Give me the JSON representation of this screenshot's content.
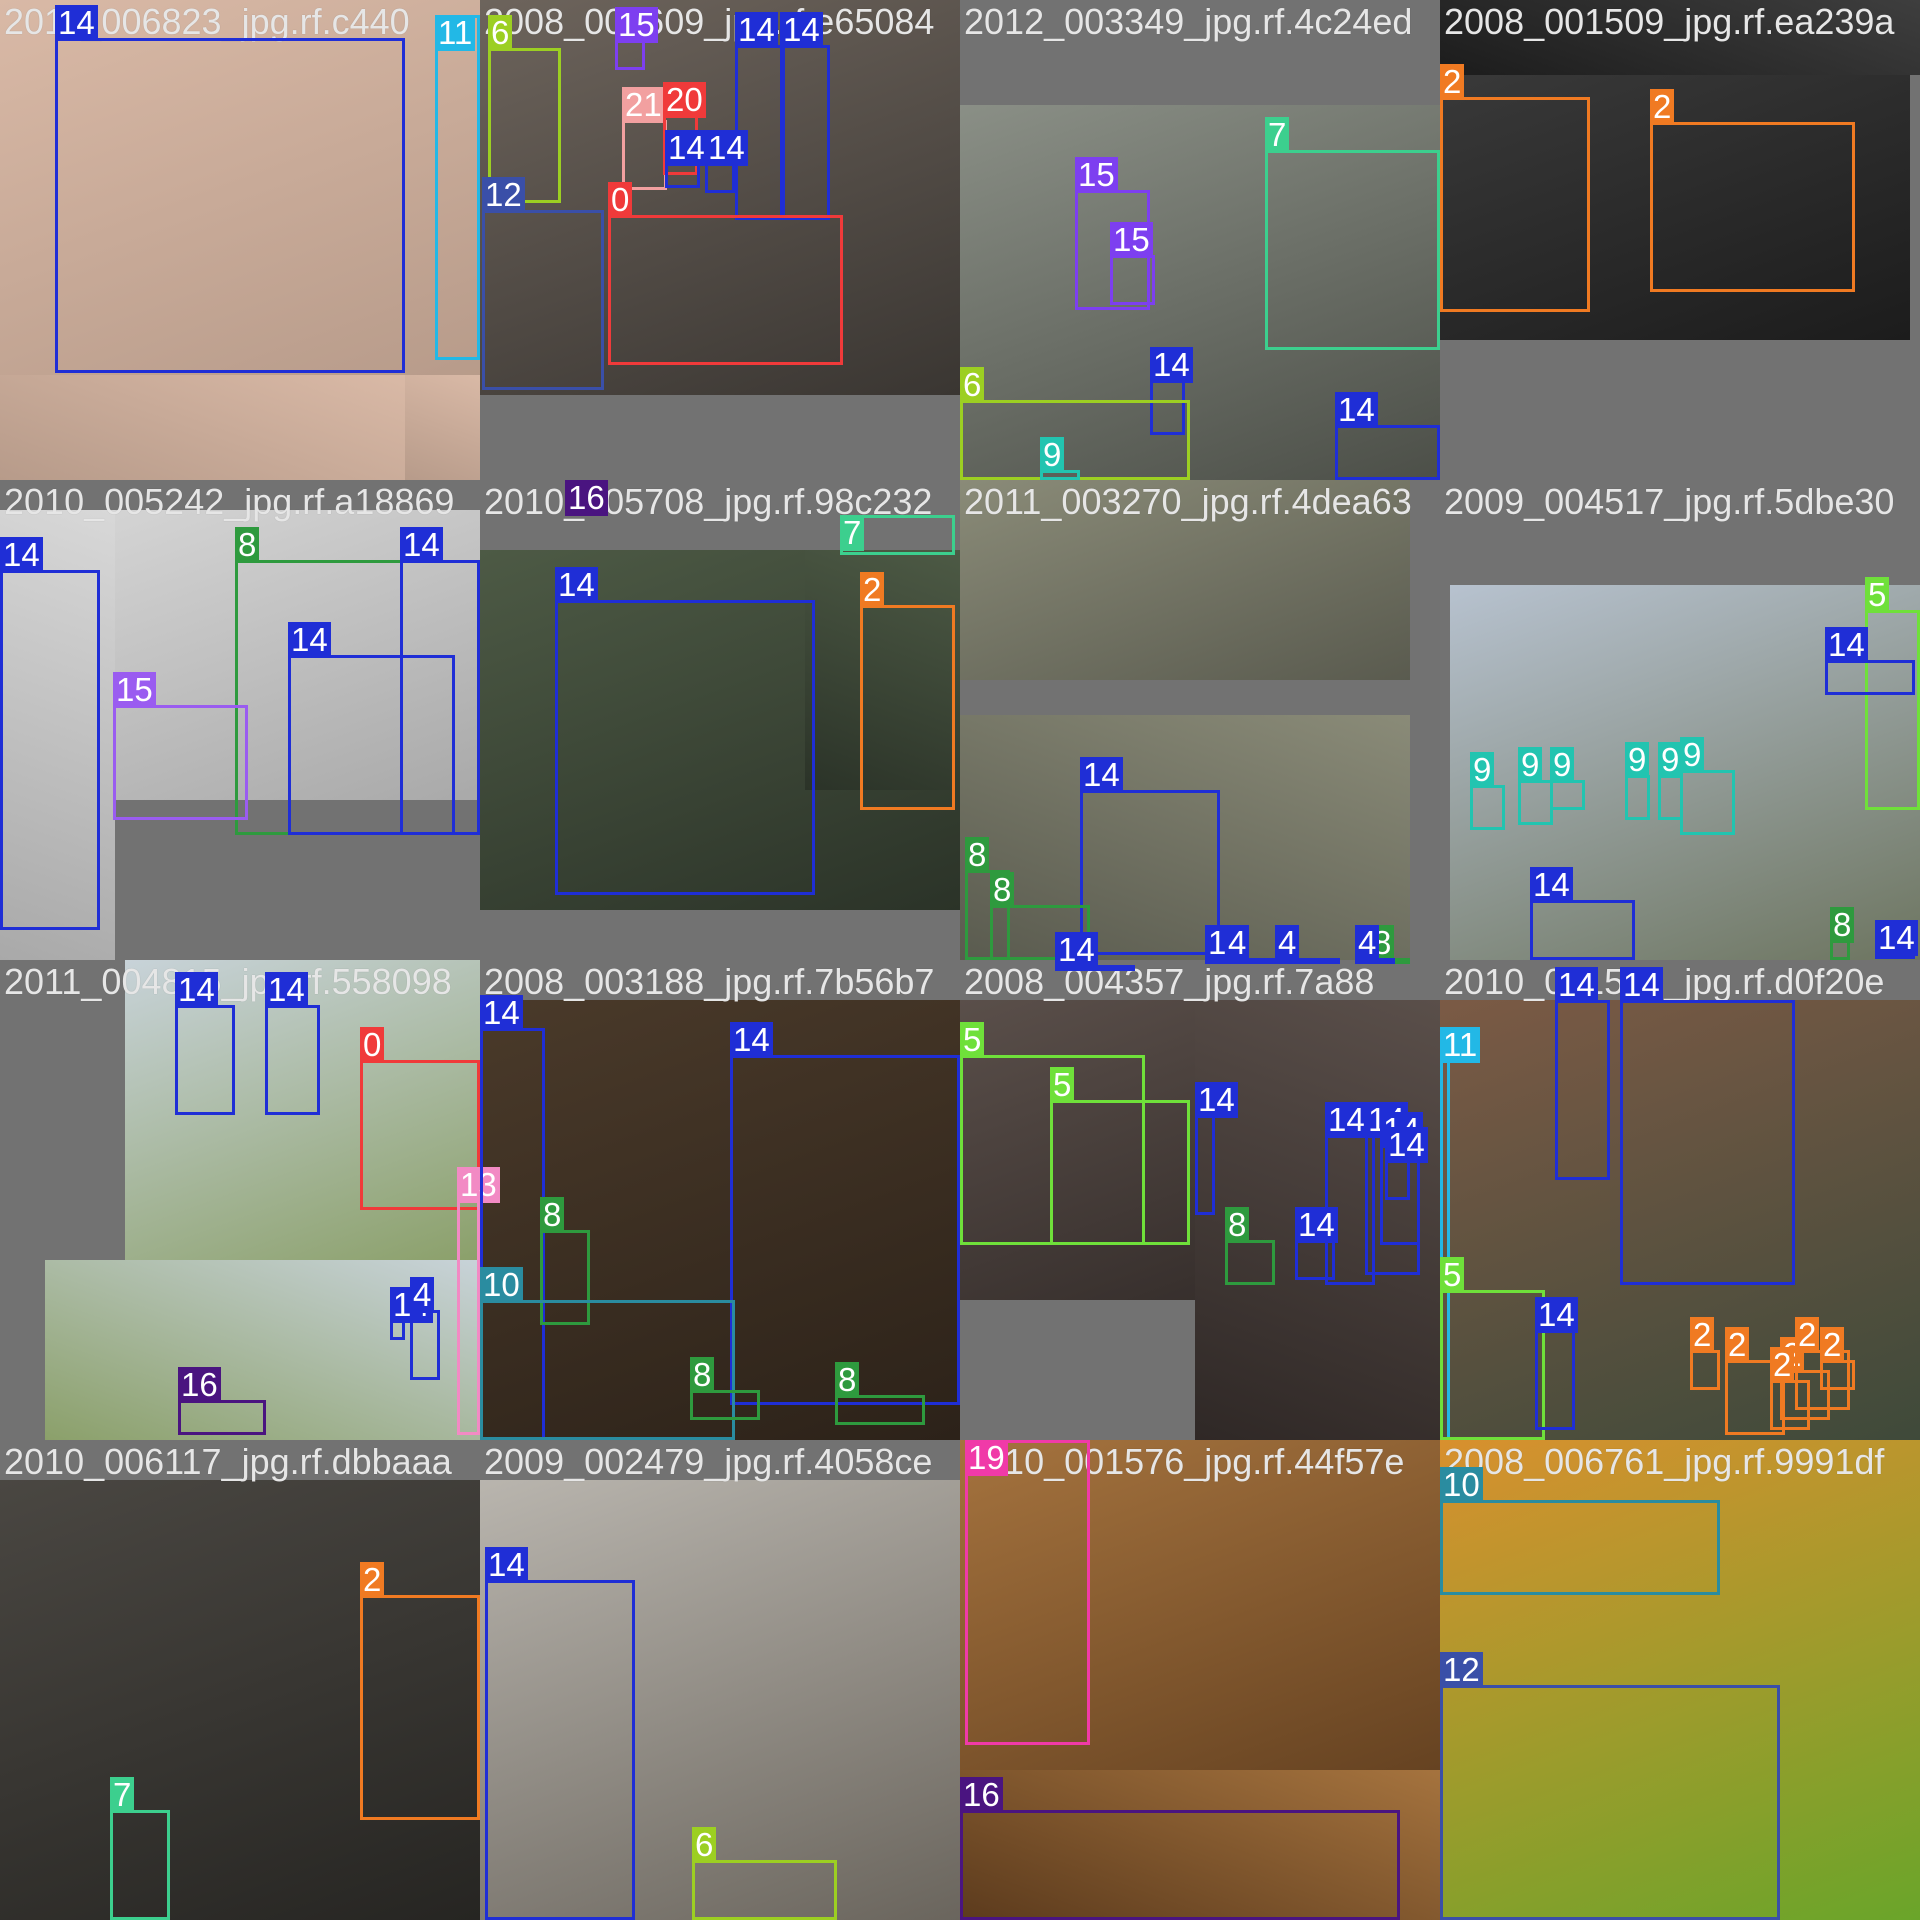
{
  "mosaic": {
    "tiles": [
      {
        "filename": "2011_006823_jpg.rf.c440",
        "bg": [
          "#d9b9a6",
          "#b79b8a"
        ]
      },
      {
        "filename": "2008_003609_jpg.rf.e65084",
        "bg": [
          "#6d645c",
          "#3a3632"
        ]
      },
      {
        "filename": "2012_003349_jpg.rf.4c24ed",
        "bg": [
          "#8a8f86",
          "#4c4f48"
        ]
      },
      {
        "filename": "2008_001509_jpg.rf.ea239a",
        "bg": [
          "#3e3e3e",
          "#1c1c1c"
        ]
      },
      {
        "filename": "2010_005242_jpg.rf.a18869",
        "bg": [
          "#d8d8d8",
          "#a9a9a9"
        ]
      },
      {
        "filename": "2010_005708_jpg.rf.98c232",
        "bg": [
          "#4d5a45",
          "#2b3328"
        ]
      },
      {
        "filename": "2011_003270_jpg.rf.4dea63",
        "bg": [
          "#8a8b78",
          "#5a5b4f"
        ]
      },
      {
        "filename": "2009_004517_jpg.rf.5dbe30",
        "bg": [
          "#b7c2cf",
          "#6d7560"
        ]
      },
      {
        "filename": "2011_004815_jpg.rf.558098",
        "bg": [
          "#c8d3d9",
          "#8ba06a"
        ]
      },
      {
        "filename": "2008_003188_jpg.rf.7b56b7",
        "bg": [
          "#4a3a2a",
          "#2c2219"
        ]
      },
      {
        "filename": "2008_004357_jpg.rf.7a88",
        "bg": [
          "#5a4f4a",
          "#2f2826"
        ]
      },
      {
        "filename": "2010_001599_jpg.rf.d0f20e",
        "bg": [
          "#7b5a45",
          "#3f4a3a"
        ]
      },
      {
        "filename": "2010_006117_jpg.rf.dbbaaa",
        "bg": [
          "#4a4742",
          "#262522"
        ]
      },
      {
        "filename": "2009_002479_jpg.rf.4058ce",
        "bg": [
          "#b9b5ae",
          "#6a655d"
        ]
      },
      {
        "filename": "2010_001576_jpg.rf.44f57e",
        "bg": [
          "#a5733e",
          "#5c3b1d"
        ]
      },
      {
        "filename": "2008_006761_jpg.rf.9991df",
        "bg": [
          "#d8902e",
          "#6aa52a"
        ]
      }
    ],
    "boxes": [
      {
        "tile": 0,
        "label": "14",
        "color": "#1f2ed6"
      },
      {
        "tile": 0,
        "label": "11",
        "color": "#22b8e6"
      },
      {
        "tile": 1,
        "label": "6",
        "color": "#9ccf22"
      },
      {
        "tile": 1,
        "label": "15",
        "color": "#7d3ff0"
      },
      {
        "tile": 1,
        "label": "14",
        "color": "#1f2ed6"
      },
      {
        "tile": 1,
        "label": "14",
        "color": "#1f2ed6"
      },
      {
        "tile": 1,
        "label": "21",
        "color": "#f2a0a0"
      },
      {
        "tile": 1,
        "label": "20",
        "color": "#f03a3a"
      },
      {
        "tile": 1,
        "label": "14",
        "color": "#1f2ed6"
      },
      {
        "tile": 1,
        "label": "14",
        "color": "#1f2ed6"
      },
      {
        "tile": 1,
        "label": "12",
        "color": "#3a4fa8"
      },
      {
        "tile": 1,
        "label": "0",
        "color": "#f03a3a"
      },
      {
        "tile": 2,
        "label": "7",
        "color": "#3ccf8e"
      },
      {
        "tile": 2,
        "label": "15",
        "color": "#7d3ff0"
      },
      {
        "tile": 2,
        "label": "15",
        "color": "#7d3ff0"
      },
      {
        "tile": 2,
        "label": "14",
        "color": "#1f2ed6"
      },
      {
        "tile": 2,
        "label": "6",
        "color": "#9ccf22"
      },
      {
        "tile": 2,
        "label": "9",
        "color": "#22c4b0"
      },
      {
        "tile": 2,
        "label": "14",
        "color": "#1f2ed6"
      },
      {
        "tile": 3,
        "label": "2",
        "color": "#f07a22"
      },
      {
        "tile": 3,
        "label": "2",
        "color": "#f07a22"
      },
      {
        "tile": 4,
        "label": "14",
        "color": "#1f2ed6"
      },
      {
        "tile": 4,
        "label": "8",
        "color": "#2e9a3e"
      },
      {
        "tile": 4,
        "label": "14",
        "color": "#1f2ed6"
      },
      {
        "tile": 4,
        "label": "15",
        "color": "#9a5cf0"
      },
      {
        "tile": 4,
        "label": "14",
        "color": "#1f2ed6"
      },
      {
        "tile": 5,
        "label": "16",
        "color": "#4a1480"
      },
      {
        "tile": 5,
        "label": "7",
        "color": "#3ccf8e"
      },
      {
        "tile": 5,
        "label": "14",
        "color": "#1f2ed6"
      },
      {
        "tile": 5,
        "label": "2",
        "color": "#f07a22"
      },
      {
        "tile": 6,
        "label": "14",
        "color": "#1f2ed6"
      },
      {
        "tile": 6,
        "label": "8",
        "color": "#2e9a3e"
      },
      {
        "tile": 6,
        "label": "8",
        "color": "#2e9a3e"
      },
      {
        "tile": 6,
        "label": "14",
        "color": "#1f2ed6"
      },
      {
        "tile": 6,
        "label": "14",
        "color": "#1f2ed6"
      },
      {
        "tile": 6,
        "label": "4",
        "color": "#1f2ed6"
      },
      {
        "tile": 6,
        "label": "4",
        "color": "#1f2ed6"
      },
      {
        "tile": 6,
        "label": "8",
        "color": "#2e9a3e"
      },
      {
        "tile": 6,
        "label": "4",
        "color": "#1f2ed6"
      },
      {
        "tile": 7,
        "label": "5",
        "color": "#6fe03a"
      },
      {
        "tile": 7,
        "label": "14",
        "color": "#1f2ed6"
      },
      {
        "tile": 7,
        "label": "9",
        "color": "#22c4b0"
      },
      {
        "tile": 7,
        "label": "9",
        "color": "#22c4b0"
      },
      {
        "tile": 7,
        "label": "9",
        "color": "#22c4b0"
      },
      {
        "tile": 7,
        "label": "9",
        "color": "#22c4b0"
      },
      {
        "tile": 7,
        "label": "9",
        "color": "#22c4b0"
      },
      {
        "tile": 7,
        "label": "9",
        "color": "#22c4b0"
      },
      {
        "tile": 7,
        "label": "14",
        "color": "#1f2ed6"
      },
      {
        "tile": 7,
        "label": "8",
        "color": "#2e9a3e"
      },
      {
        "tile": 7,
        "label": "14",
        "color": "#1f2ed6"
      },
      {
        "tile": 8,
        "label": "14",
        "color": "#1f2ed6"
      },
      {
        "tile": 8,
        "label": "14",
        "color": "#1f2ed6"
      },
      {
        "tile": 8,
        "label": "0",
        "color": "#f03a3a"
      },
      {
        "tile": 8,
        "label": "13",
        "color": "#f28ac4"
      },
      {
        "tile": 8,
        "label": "14",
        "color": "#1f2ed6"
      },
      {
        "tile": 8,
        "label": "4",
        "color": "#1f2ed6"
      },
      {
        "tile": 8,
        "label": "16",
        "color": "#4a1480"
      },
      {
        "tile": 9,
        "label": "14",
        "color": "#1f2ed6"
      },
      {
        "tile": 9,
        "label": "14",
        "color": "#1f2ed6"
      },
      {
        "tile": 9,
        "label": "8",
        "color": "#2e9a3e"
      },
      {
        "tile": 9,
        "label": "10",
        "color": "#2a8ca0"
      },
      {
        "tile": 9,
        "label": "8",
        "color": "#2e9a3e"
      },
      {
        "tile": 9,
        "label": "8",
        "color": "#2e9a3e"
      },
      {
        "tile": 10,
        "label": "5",
        "color": "#6fe03a"
      },
      {
        "tile": 10,
        "label": "5",
        "color": "#6fe03a"
      },
      {
        "tile": 10,
        "label": "14",
        "color": "#1f2ed6"
      },
      {
        "tile": 10,
        "label": "14",
        "color": "#1f2ed6"
      },
      {
        "tile": 10,
        "label": "14",
        "color": "#1f2ed6"
      },
      {
        "tile": 10,
        "label": "14",
        "color": "#1f2ed6"
      },
      {
        "tile": 10,
        "label": "14",
        "color": "#1f2ed6"
      },
      {
        "tile": 10,
        "label": "8",
        "color": "#2e9a3e"
      },
      {
        "tile": 10,
        "label": "14",
        "color": "#1f2ed6"
      },
      {
        "tile": 11,
        "label": "14",
        "color": "#1f2ed6"
      },
      {
        "tile": 11,
        "label": "14",
        "color": "#1f2ed6"
      },
      {
        "tile": 11,
        "label": "11",
        "color": "#22b8e6"
      },
      {
        "tile": 11,
        "label": "5",
        "color": "#6fe03a"
      },
      {
        "tile": 11,
        "label": "14",
        "color": "#1f2ed6"
      },
      {
        "tile": 11,
        "label": "2",
        "color": "#f07a22"
      },
      {
        "tile": 11,
        "label": "2",
        "color": "#f07a22"
      },
      {
        "tile": 11,
        "label": "2",
        "color": "#f07a22"
      },
      {
        "tile": 11,
        "label": "2",
        "color": "#f07a22"
      },
      {
        "tile": 11,
        "label": "2",
        "color": "#f07a22"
      },
      {
        "tile": 11,
        "label": "2",
        "color": "#f07a22"
      },
      {
        "tile": 12,
        "label": "2",
        "color": "#f07a22"
      },
      {
        "tile": 12,
        "label": "7",
        "color": "#3ccf8e"
      },
      {
        "tile": 13,
        "label": "14",
        "color": "#1f2ed6"
      },
      {
        "tile": 13,
        "label": "6",
        "color": "#9ccf22"
      },
      {
        "tile": 14,
        "label": "19",
        "color": "#f03aa8"
      },
      {
        "tile": 14,
        "label": "16",
        "color": "#4a1480"
      },
      {
        "tile": 15,
        "label": "10",
        "color": "#2a8ca0"
      },
      {
        "tile": 15,
        "label": "12",
        "color": "#3a4fa8"
      }
    ]
  }
}
